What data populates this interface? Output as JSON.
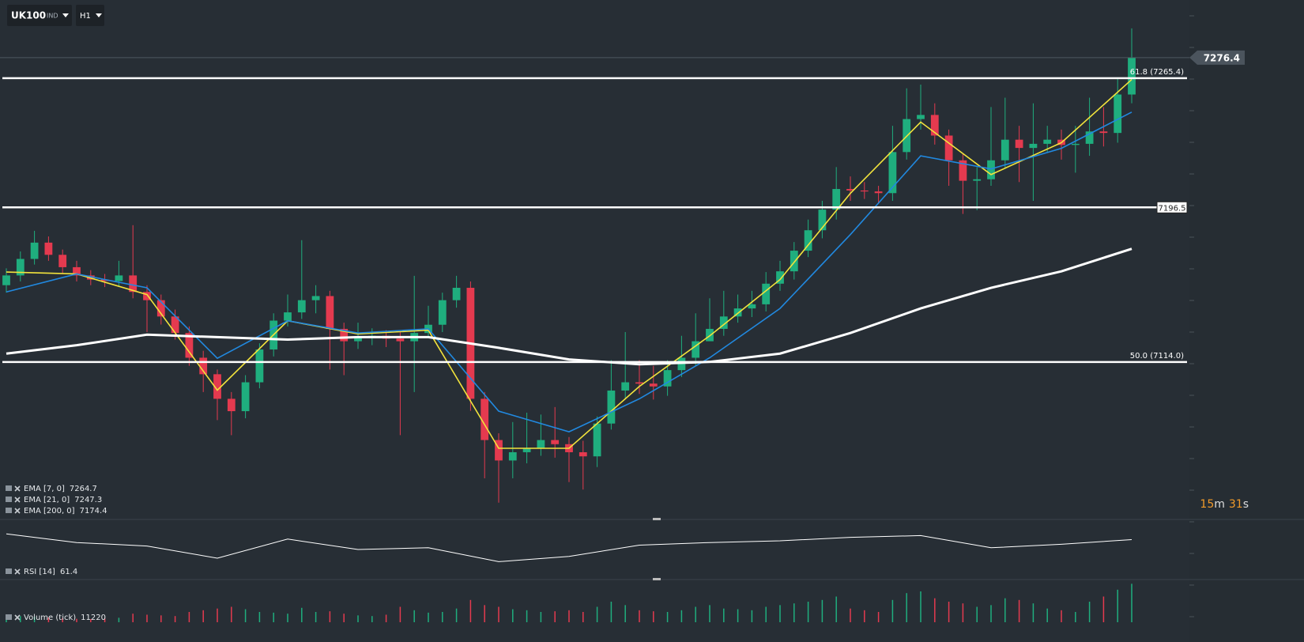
{
  "toolbar": {
    "symbol": "UK100",
    "class": "IND",
    "timeframe": "H1"
  },
  "countdown": [
    "15",
    "m",
    "31",
    "s"
  ],
  "chart_data": [
    {
      "type": "candlestick",
      "ylim": [
        7033,
        7305
      ],
      "open": [
        7155.0,
        7160.2,
        7169.0,
        7177.7,
        7171.2,
        7164.6,
        7160.2,
        7158.0,
        7157.2,
        7160.2,
        7151.4,
        7147.0,
        7138.3,
        7129.5,
        7116.3,
        7107.5,
        7094.4,
        7087.8,
        7103.2,
        7120.7,
        7136.1,
        7140.5,
        7147.0,
        7149.2,
        7131.7,
        7125.1,
        7127.3,
        7128.0,
        7126.5,
        7125.1,
        7129.5,
        7133.9,
        7147.0,
        7153.6,
        7094.4,
        7072.4,
        7061.5,
        7065.9,
        7068.1,
        7072.4,
        7070.2,
        7065.9,
        7063.7,
        7081.2,
        7098.8,
        7103.2,
        7102.5,
        7101.0,
        7109.7,
        7116.3,
        7125.1,
        7131.7,
        7138.3,
        7142.6,
        7144.8,
        7155.8,
        7162.4,
        7173.4,
        7184.3,
        7195.3,
        7206.3,
        7205.5,
        7205.0,
        7204.1,
        7226.0,
        7243.6,
        7245.8,
        7234.8,
        7221.6,
        7210.7,
        7211.5,
        7221.6,
        7232.6,
        7228.2,
        7230.4,
        7232.6,
        7229.8,
        7230.4,
        7237.0,
        7236.2,
        7256.7
      ],
      "high": [
        7164,
        7173,
        7184,
        7181,
        7174,
        7168,
        7163,
        7161,
        7168,
        7187,
        7155,
        7150,
        7142,
        7133,
        7120,
        7110,
        7098,
        7107,
        7124,
        7140,
        7150,
        7179,
        7155,
        7152,
        7135,
        7135,
        7132,
        7131,
        7130,
        7160,
        7144,
        7151,
        7160,
        7157,
        7098,
        7076,
        7082,
        7087,
        7086,
        7090,
        7074,
        7072,
        7085,
        7115,
        7130,
        7115,
        7112,
        7115,
        7128,
        7140,
        7148,
        7152,
        7150,
        7152,
        7162,
        7168,
        7178,
        7190,
        7200,
        7218,
        7213,
        7210,
        7208,
        7240,
        7260,
        7262,
        7252,
        7238,
        7225,
        7218,
        7250,
        7255,
        7240,
        7252,
        7240,
        7238,
        7240,
        7255,
        7250,
        7265,
        7292
      ],
      "low": [
        7151,
        7157,
        7166,
        7168,
        7161,
        7157,
        7155,
        7154,
        7154,
        7148,
        7130,
        7134,
        7126,
        7112,
        7098,
        7083,
        7075,
        7084,
        7100,
        7117,
        7133,
        7137,
        7140,
        7110,
        7107,
        7121,
        7123,
        7122,
        7075,
        7098,
        7127,
        7130,
        7143,
        7088,
        7052,
        7039,
        7052,
        7060,
        7064,
        7063,
        7050,
        7046,
        7058,
        7078,
        7094,
        7097,
        7094,
        7096,
        7106,
        7112,
        7127,
        7128,
        7135,
        7138,
        7141,
        7152,
        7158,
        7170,
        7180,
        7190,
        7200,
        7201,
        7199,
        7200,
        7222,
        7238,
        7230,
        7208,
        7193,
        7195,
        7208,
        7217,
        7210,
        7200,
        7226,
        7222,
        7215,
        7224,
        7229,
        7231,
        7252
      ],
      "close": [
        7160.2,
        7169.0,
        7177.7,
        7171.2,
        7164.6,
        7160.2,
        7158.0,
        7157.2,
        7160.2,
        7151.4,
        7147.0,
        7138.3,
        7129.5,
        7116.3,
        7107.5,
        7094.4,
        7087.8,
        7103.2,
        7120.7,
        7136.1,
        7140.5,
        7147.0,
        7149.2,
        7131.7,
        7125.1,
        7127.3,
        7128.0,
        7126.5,
        7125.1,
        7129.5,
        7133.9,
        7147.0,
        7153.6,
        7094.4,
        7072.4,
        7061.5,
        7065.9,
        7068.1,
        7072.4,
        7070.2,
        7065.9,
        7063.7,
        7081.2,
        7098.8,
        7103.2,
        7102.5,
        7101.0,
        7109.7,
        7116.3,
        7125.1,
        7131.7,
        7138.3,
        7142.6,
        7144.8,
        7155.8,
        7162.4,
        7173.4,
        7184.3,
        7195.3,
        7206.3,
        7205.5,
        7205.0,
        7204.1,
        7226.0,
        7243.6,
        7245.8,
        7234.8,
        7221.6,
        7210.7,
        7211.5,
        7221.6,
        7232.6,
        7228.2,
        7230.4,
        7232.6,
        7229.8,
        7230.4,
        7237.0,
        7236.2,
        7256.7,
        7276.4
      ],
      "up_color": "#1fae7e",
      "down_color": "#e43a4f",
      "series": [
        {
          "name": "EMA [7, 0]",
          "color": "#f2e33c",
          "x": [
            0,
            5,
            10,
            15,
            20,
            25,
            30,
            35,
            40,
            45,
            50,
            55,
            60,
            65,
            70,
            75,
            80
          ],
          "values": [
            7162,
            7161,
            7150,
            7099,
            7136,
            7129,
            7131,
            7068,
            7068,
            7101,
            7128,
            7158,
            7204,
            7242,
            7214,
            7231,
            7264.7
          ]
        },
        {
          "name": "EMA [21, 0]",
          "color": "#2189e0",
          "x": [
            0,
            5,
            10,
            15,
            20,
            25,
            30,
            35,
            40,
            45,
            50,
            55,
            60,
            65,
            70,
            75,
            80
          ],
          "values": [
            7151.4,
            7161,
            7153.6,
            7116,
            7136,
            7129.5,
            7131.7,
            7087.8,
            7076.8,
            7094.4,
            7116.3,
            7142.6,
            7182,
            7224,
            7217,
            7228,
            7247.3
          ]
        },
        {
          "name": "EMA [200, 0]",
          "color": "#ffffff",
          "x": [
            0,
            5,
            10,
            15,
            20,
            25,
            30,
            35,
            40,
            45,
            50,
            55,
            60,
            65,
            70,
            75,
            80
          ],
          "values": [
            7118.5,
            7123,
            7128.6,
            7127.3,
            7126,
            7127.3,
            7127.3,
            7121.6,
            7115.4,
            7112.8,
            7114.1,
            7118.5,
            7129.5,
            7142.6,
            7153.6,
            7162.4,
            7174.4
          ]
        }
      ],
      "levels": [
        {
          "value": 7265.4,
          "label": "61.8 (7265.4)"
        },
        {
          "value": 7196.5
        },
        {
          "value": 7114.0,
          "label": "50.0 (7114.0)"
        }
      ]
    },
    {
      "type": "line",
      "name": "RSI [14]",
      "color": "#ffffff",
      "ylim": [
        20,
        80
      ],
      "x": [
        0,
        5,
        10,
        15,
        20,
        25,
        30,
        35,
        40,
        45,
        50,
        55,
        60,
        65,
        70,
        75,
        80
      ],
      "values": [
        68,
        58,
        54,
        40,
        62,
        50,
        52,
        36,
        42,
        55,
        58,
        60,
        64,
        66,
        52,
        56,
        61.4
      ]
    },
    {
      "type": "bar",
      "name": "Volume (tick)",
      "ylim": [
        0,
        12000
      ],
      "values": [
        1500,
        1800,
        1600,
        1400,
        1200,
        1000,
        900,
        1100,
        1300,
        2500,
        2200,
        2000,
        1800,
        3000,
        3500,
        4000,
        4500,
        3800,
        3000,
        2800,
        2500,
        4200,
        3000,
        3200,
        2500,
        2000,
        1800,
        2200,
        4500,
        3500,
        2800,
        3000,
        4000,
        6500,
        5000,
        4500,
        3800,
        3500,
        3000,
        3200,
        3500,
        3000,
        4500,
        6000,
        5000,
        3500,
        3200,
        3000,
        3500,
        4500,
        5000,
        4000,
        3800,
        3500,
        4500,
        5000,
        5500,
        6000,
        6500,
        7500,
        4000,
        3500,
        3000,
        6500,
        8500,
        9000,
        7000,
        6000,
        5500,
        4500,
        5000,
        7000,
        6500,
        5500,
        4000,
        3500,
        3000,
        6000,
        7500,
        9500,
        11220
      ]
    }
  ]
}
